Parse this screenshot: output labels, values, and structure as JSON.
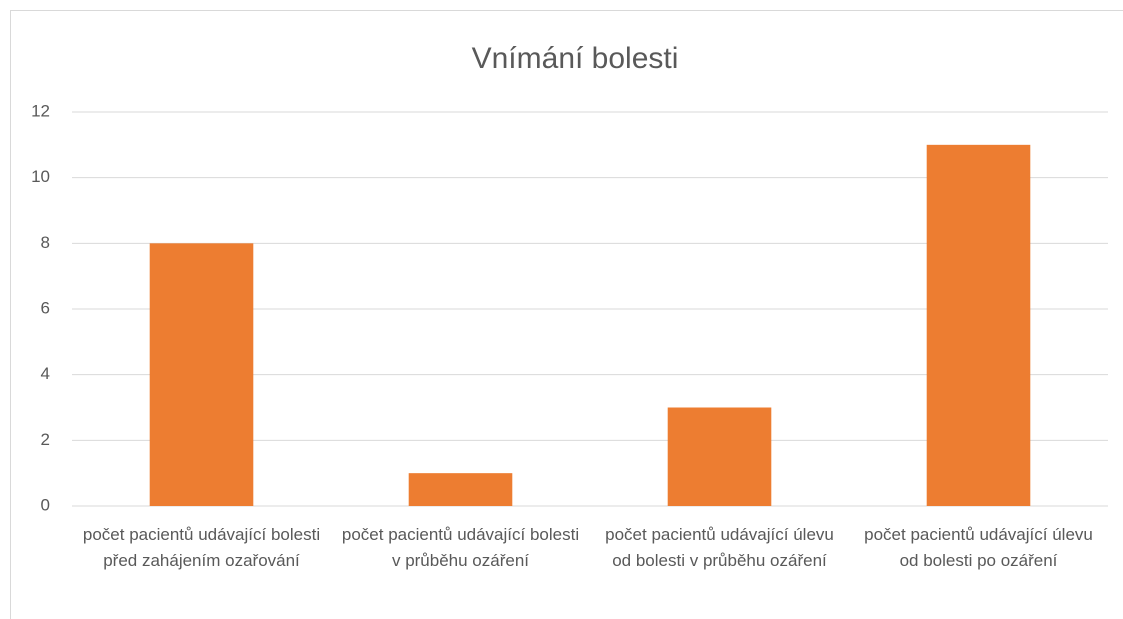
{
  "chart_data": {
    "type": "bar",
    "title": "Vnímání bolesti",
    "categories": [
      "počet pacientů udávající bolesti před zahájením ozařování",
      "počet pacientů udávající bolesti v průběhu ozáření",
      "počet pacientů udávající úlevu od bolesti v průběhu ozáření",
      "počet pacientů udávající úlevu od bolesti po ozáření"
    ],
    "values": [
      8,
      1,
      3,
      11
    ],
    "color": "#ed7d31",
    "ylim": [
      0,
      12
    ],
    "yticks": [
      0,
      2,
      4,
      6,
      8,
      10,
      12
    ],
    "grid": true
  }
}
